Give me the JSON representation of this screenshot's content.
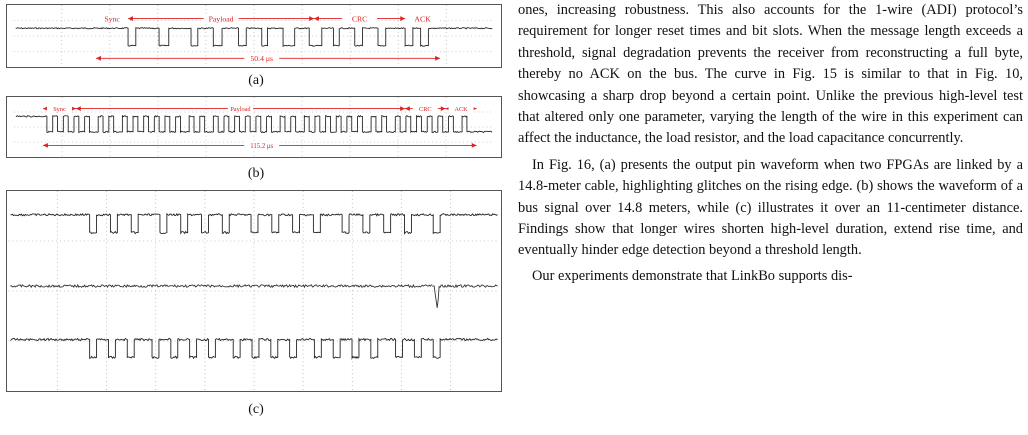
{
  "figure": {
    "panels": [
      {
        "id": "a",
        "caption": "(a)",
        "segments": [
          "Sync",
          "Payload",
          "CRC",
          "ACK"
        ],
        "duration": "50.4 μs"
      },
      {
        "id": "b",
        "caption": "(b)",
        "segments": [
          "Sync",
          "Payload",
          "CRC",
          "ACK"
        ],
        "duration": "115.2 μs"
      },
      {
        "id": "c",
        "caption": "(c)"
      }
    ]
  },
  "body_text": {
    "para1": "ones, increasing robustness. This also accounts for the 1-wire (ADI) protocol’s requirement for longer reset times and bit slots. When the message length exceeds a threshold, signal degradation prevents the receiver from reconstructing a full byte, thereby no ACK on the bus. The curve in Fig. 15 is similar to that in Fig. 10, showcasing a sharp drop beyond a certain point. Unlike the previous high-level test that altered only one parameter, varying the length of the wire in this experiment can affect the inductance, the load resistor, and the load capacitance concurrently.",
    "para2": "In Fig. 16, (a) presents the output pin waveform when two FPGAs are linked by a 14.8-meter cable, highlighting glitches on the rising edge. (b) shows the waveform of a bus signal over 14.8 meters, while (c) illustrates it over an 11-centimeter distance. Findings show that longer wires shorten high-level duration, extend rise time, and eventually hinder edge detection beyond a threshold length.",
    "para3": "Our experiments demonstrate that LinkBo supports dis-"
  }
}
